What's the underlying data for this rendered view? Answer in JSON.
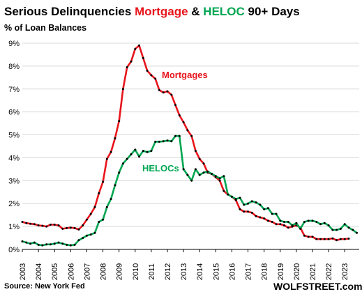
{
  "chart_data": {
    "type": "line",
    "title_parts": {
      "part1": "Serious Delinquencies ",
      "mortgage": "Mortgage",
      "amp": " & ",
      "heloc": "HELOC",
      "part2": " 90+ Days"
    },
    "subtitle": "% of Loan Balances",
    "ylim": [
      0,
      9
    ],
    "y_ticks": [
      "0%",
      "1%",
      "2%",
      "3%",
      "4%",
      "5%",
      "6%",
      "7%",
      "8%",
      "9%"
    ],
    "x_ticks": [
      "2003",
      "2004",
      "2005",
      "2006",
      "2007",
      "2008",
      "2009",
      "2010",
      "2011",
      "2012",
      "2013",
      "2014",
      "2015",
      "2016",
      "2017",
      "2018",
      "2019",
      "2020",
      "2021",
      "2022",
      "2023"
    ],
    "grid": true,
    "series": [
      {
        "name": "Mortgages",
        "color": "#e8141b",
        "points": [
          [
            2003.0,
            1.2
          ],
          [
            2003.25,
            1.15
          ],
          [
            2003.5,
            1.12
          ],
          [
            2003.75,
            1.1
          ],
          [
            2004.0,
            1.05
          ],
          [
            2004.25,
            1.03
          ],
          [
            2004.5,
            1.0
          ],
          [
            2004.75,
            1.08
          ],
          [
            2005.0,
            1.08
          ],
          [
            2005.25,
            1.05
          ],
          [
            2005.5,
            0.9
          ],
          [
            2005.75,
            0.93
          ],
          [
            2006.0,
            0.95
          ],
          [
            2006.25,
            0.93
          ],
          [
            2006.5,
            0.87
          ],
          [
            2006.75,
            1.05
          ],
          [
            2007.0,
            1.3
          ],
          [
            2007.25,
            1.55
          ],
          [
            2007.5,
            1.85
          ],
          [
            2007.75,
            2.45
          ],
          [
            2008.0,
            2.95
          ],
          [
            2008.25,
            3.95
          ],
          [
            2008.5,
            4.25
          ],
          [
            2008.75,
            4.85
          ],
          [
            2009.0,
            5.6
          ],
          [
            2009.25,
            7.0
          ],
          [
            2009.5,
            7.95
          ],
          [
            2009.75,
            8.2
          ],
          [
            2010.0,
            8.75
          ],
          [
            2010.25,
            8.9
          ],
          [
            2010.5,
            8.35
          ],
          [
            2010.75,
            7.8
          ],
          [
            2011.0,
            7.6
          ],
          [
            2011.25,
            7.45
          ],
          [
            2011.5,
            6.95
          ],
          [
            2011.75,
            6.85
          ],
          [
            2012.0,
            6.9
          ],
          [
            2012.25,
            6.75
          ],
          [
            2012.5,
            6.3
          ],
          [
            2012.75,
            5.85
          ],
          [
            2013.0,
            5.55
          ],
          [
            2013.25,
            5.2
          ],
          [
            2013.5,
            4.95
          ],
          [
            2013.75,
            4.3
          ],
          [
            2014.0,
            3.95
          ],
          [
            2014.25,
            3.75
          ],
          [
            2014.5,
            3.35
          ],
          [
            2014.75,
            3.3
          ],
          [
            2015.0,
            3.15
          ],
          [
            2015.25,
            3.0
          ],
          [
            2015.5,
            2.55
          ],
          [
            2015.75,
            2.4
          ],
          [
            2016.0,
            2.3
          ],
          [
            2016.25,
            2.15
          ],
          [
            2016.5,
            1.75
          ],
          [
            2016.75,
            1.65
          ],
          [
            2017.0,
            1.65
          ],
          [
            2017.25,
            1.6
          ],
          [
            2017.5,
            1.45
          ],
          [
            2017.75,
            1.4
          ],
          [
            2018.0,
            1.35
          ],
          [
            2018.25,
            1.25
          ],
          [
            2018.5,
            1.2
          ],
          [
            2018.75,
            1.1
          ],
          [
            2019.0,
            1.1
          ],
          [
            2019.25,
            1.05
          ],
          [
            2019.5,
            0.95
          ],
          [
            2019.75,
            1.0
          ],
          [
            2020.0,
            1.05
          ],
          [
            2020.25,
            0.95
          ],
          [
            2020.5,
            0.6
          ],
          [
            2020.75,
            0.55
          ],
          [
            2021.0,
            0.55
          ],
          [
            2021.25,
            0.45
          ],
          [
            2021.5,
            0.45
          ],
          [
            2021.75,
            0.45
          ],
          [
            2022.0,
            0.45
          ],
          [
            2022.25,
            0.48
          ],
          [
            2022.5,
            0.4
          ],
          [
            2022.75,
            0.45
          ],
          [
            2023.0,
            0.45
          ],
          [
            2023.25,
            0.47
          ]
        ]
      },
      {
        "name": "HELOCs",
        "color": "#00a651",
        "points": [
          [
            2003.0,
            0.35
          ],
          [
            2003.25,
            0.3
          ],
          [
            2003.5,
            0.25
          ],
          [
            2003.75,
            0.3
          ],
          [
            2004.0,
            0.2
          ],
          [
            2004.25,
            0.18
          ],
          [
            2004.5,
            0.22
          ],
          [
            2004.75,
            0.22
          ],
          [
            2005.0,
            0.25
          ],
          [
            2005.25,
            0.3
          ],
          [
            2005.5,
            0.25
          ],
          [
            2005.75,
            0.2
          ],
          [
            2006.0,
            0.18
          ],
          [
            2006.25,
            0.2
          ],
          [
            2006.5,
            0.4
          ],
          [
            2006.75,
            0.5
          ],
          [
            2007.0,
            0.6
          ],
          [
            2007.25,
            0.65
          ],
          [
            2007.5,
            0.72
          ],
          [
            2007.75,
            1.2
          ],
          [
            2008.0,
            1.3
          ],
          [
            2008.25,
            1.85
          ],
          [
            2008.5,
            2.2
          ],
          [
            2008.75,
            2.8
          ],
          [
            2009.0,
            3.35
          ],
          [
            2009.25,
            3.75
          ],
          [
            2009.5,
            3.95
          ],
          [
            2009.75,
            4.15
          ],
          [
            2010.0,
            4.35
          ],
          [
            2010.25,
            4.05
          ],
          [
            2010.5,
            4.3
          ],
          [
            2010.75,
            4.25
          ],
          [
            2011.0,
            4.3
          ],
          [
            2011.25,
            4.7
          ],
          [
            2011.5,
            4.7
          ],
          [
            2011.75,
            4.72
          ],
          [
            2012.0,
            4.75
          ],
          [
            2012.25,
            4.72
          ],
          [
            2012.5,
            4.95
          ],
          [
            2012.75,
            4.95
          ],
          [
            2013.0,
            3.5
          ],
          [
            2013.25,
            3.25
          ],
          [
            2013.5,
            3.0
          ],
          [
            2013.75,
            3.5
          ],
          [
            2014.0,
            3.25
          ],
          [
            2014.25,
            3.35
          ],
          [
            2014.5,
            3.4
          ],
          [
            2014.75,
            3.3
          ],
          [
            2015.0,
            3.2
          ],
          [
            2015.25,
            3.1
          ],
          [
            2015.5,
            3.2
          ],
          [
            2015.75,
            2.4
          ],
          [
            2016.0,
            2.3
          ],
          [
            2016.25,
            2.2
          ],
          [
            2016.5,
            2.25
          ],
          [
            2016.75,
            1.95
          ],
          [
            2017.0,
            2.0
          ],
          [
            2017.25,
            2.1
          ],
          [
            2017.5,
            2.05
          ],
          [
            2017.75,
            1.95
          ],
          [
            2018.0,
            1.75
          ],
          [
            2018.25,
            1.8
          ],
          [
            2018.5,
            1.55
          ],
          [
            2018.75,
            1.55
          ],
          [
            2019.0,
            1.25
          ],
          [
            2019.25,
            1.2
          ],
          [
            2019.5,
            1.2
          ],
          [
            2019.75,
            1.05
          ],
          [
            2020.0,
            1.15
          ],
          [
            2020.25,
            0.9
          ],
          [
            2020.5,
            1.2
          ],
          [
            2020.75,
            1.25
          ],
          [
            2021.0,
            1.25
          ],
          [
            2021.25,
            1.2
          ],
          [
            2021.5,
            1.1
          ],
          [
            2021.75,
            1.15
          ],
          [
            2022.0,
            1.05
          ],
          [
            2022.25,
            0.85
          ],
          [
            2022.5,
            0.85
          ],
          [
            2022.75,
            0.9
          ],
          [
            2023.0,
            1.1
          ],
          [
            2023.25,
            0.95
          ],
          [
            2023.5,
            0.85
          ],
          [
            2023.75,
            0.72
          ]
        ]
      }
    ],
    "annotations": {
      "mortgages": "Mortgages",
      "helocs": "HELOCs"
    },
    "source": "Source: New York Fed",
    "brand": "WOLFSTREET.com"
  }
}
